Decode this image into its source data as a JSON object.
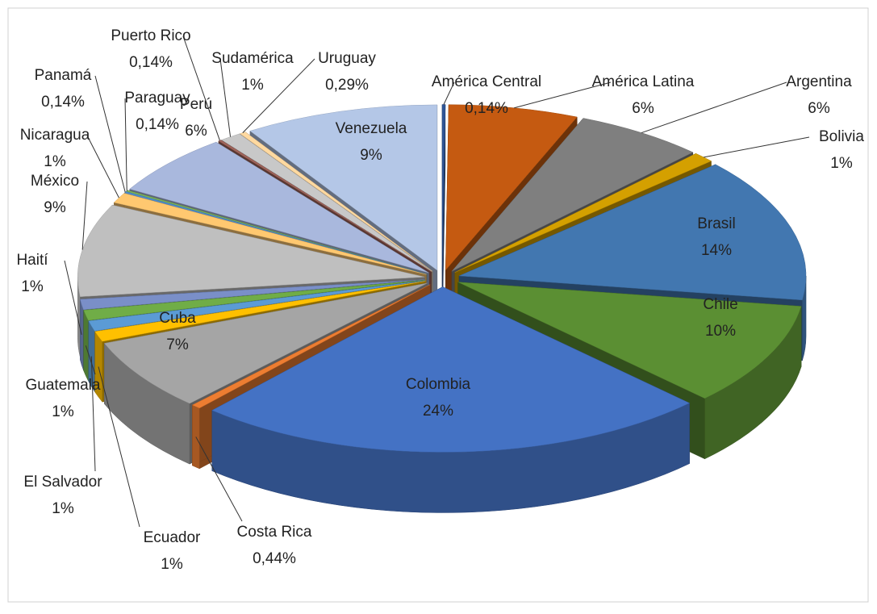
{
  "chart_data": {
    "type": "pie",
    "categories": [
      "América Central",
      "América Latina",
      "Argentina",
      "Bolivia",
      "Brasil",
      "Chile",
      "Colombia",
      "Costa Rica",
      "Cuba",
      "Ecuador",
      "El Salvador",
      "Guatemala",
      "Haití",
      "México",
      "Nicaragua",
      "Panamá",
      "Paraguay",
      "Perú",
      "Puerto Rico",
      "Sudamérica",
      "Uruguay",
      "Venezuela"
    ],
    "values": [
      0.14,
      6,
      6,
      1,
      14,
      10,
      24,
      0.44,
      7,
      1,
      1,
      1,
      1,
      9,
      1,
      0.14,
      0.14,
      6,
      0.14,
      1,
      0.29,
      9
    ],
    "value_labels": [
      "0,14%",
      "6%",
      "6%",
      "1%",
      "14%",
      "10%",
      "24%",
      "0,44%",
      "7%",
      "1%",
      "1%",
      "1%",
      "1%",
      "9%",
      "1%",
      "0,14%",
      "0,14%",
      "6%",
      "0,14%",
      "1%",
      "0,29%",
      "9%"
    ],
    "colors": [
      "#2f5597",
      "#c55a11",
      "#7f7f7f",
      "#d4a000",
      "#4277b0",
      "#5b8f33",
      "#4472c4",
      "#ed7d31",
      "#a5a5a5",
      "#ffc000",
      "#5b9bd5",
      "#70ad47",
      "#7a8fc8",
      "#bfbfbf",
      "#ffc870",
      "#4e8ed0",
      "#7db35a",
      "#a9b8dd",
      "#a0645a",
      "#c8c8c8",
      "#ffd9a0",
      "#b4c7e7"
    ]
  }
}
